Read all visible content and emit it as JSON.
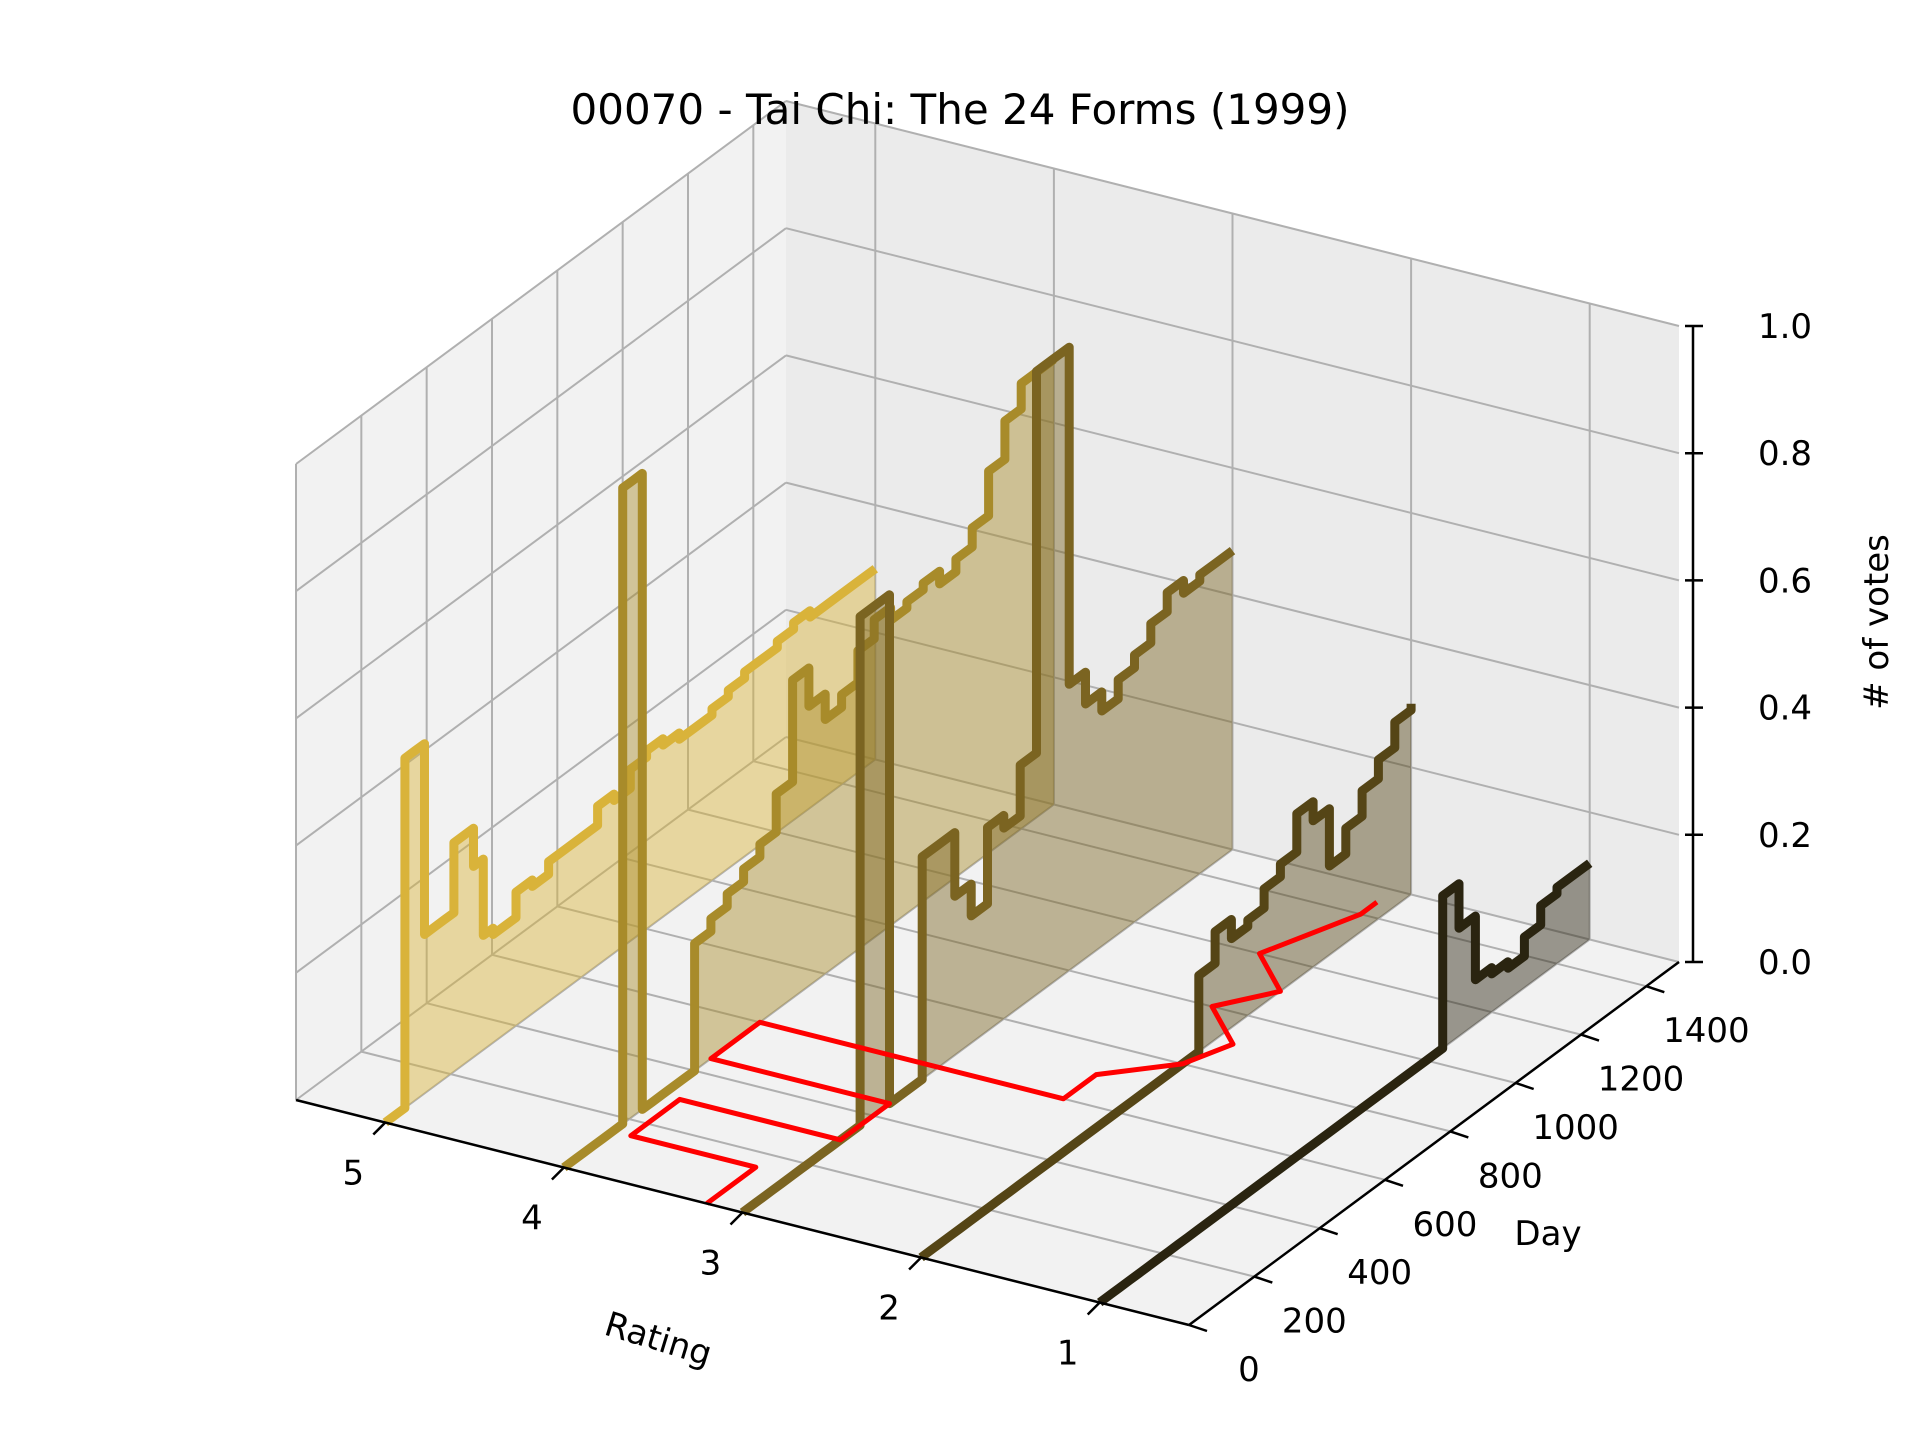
{
  "chart_data": {
    "type": "line",
    "title": "00070 - Tai Chi: The 24 Forms (1999)",
    "xlabel": "Rating",
    "ylabel": "Day",
    "zlabel": "# of votes",
    "x_ticks": [
      "5",
      "4",
      "3",
      "2",
      "1"
    ],
    "y_ticks": [
      "0",
      "200",
      "400",
      "600",
      "800",
      "1000",
      "1200",
      "1400"
    ],
    "z_ticks": [
      "0.0",
      "0.2",
      "0.4",
      "0.6",
      "0.8",
      "1.0"
    ],
    "xlim": [
      0.5,
      5.5
    ],
    "ylim": [
      0,
      1500
    ],
    "zlim": [
      0,
      1
    ],
    "grid": true,
    "day": [
      0,
      40,
      60,
      90,
      120,
      150,
      180,
      210,
      240,
      270,
      300,
      330,
      360,
      400,
      450,
      500,
      550,
      600,
      650,
      700,
      750,
      800,
      850,
      900,
      950,
      1000,
      1050,
      1100,
      1150,
      1200,
      1250,
      1300,
      1350,
      1400,
      1450,
      1500
    ],
    "series": [
      {
        "rating": 5,
        "color": "#d9b33a",
        "values": [
          0,
          0,
          0.55,
          0.55,
          0.25,
          0.25,
          0.25,
          0.36,
          0.36,
          0.3,
          0.18,
          0.17,
          0.17,
          0.21,
          0.2,
          0.22,
          0.22,
          0.22,
          0.25,
          0.24,
          0.27,
          0.28,
          0.27,
          0.26,
          0.26,
          0.27,
          0.28,
          0.29,
          0.29,
          0.3,
          0.31,
          0.3,
          0.3,
          0.3,
          0.3,
          0.3
        ]
      },
      {
        "rating": 4,
        "color": "#a88b2a",
        "values": [
          0,
          0,
          0,
          0,
          0,
          0,
          1.0,
          1.0,
          0,
          0,
          0,
          0,
          0,
          0.2,
          0.22,
          0.24,
          0.26,
          0.28,
          0.34,
          0.5,
          0.44,
          0.4,
          0.42,
          0.47,
          0.5,
          0.48,
          0.49,
          0.5,
          0.48,
          0.5,
          0.53,
          0.6,
          0.66,
          0.7,
          0.7,
          0.7
        ]
      },
      {
        "rating": 3,
        "color": "#7b6421",
        "values": [
          0,
          0,
          0,
          0,
          0,
          0,
          0,
          0,
          0,
          0,
          0,
          0,
          0.8,
          0.8,
          0,
          0,
          0.35,
          0.35,
          0.25,
          0.2,
          0.32,
          0.3,
          0.38,
          0.98,
          0.98,
          0.45,
          0.4,
          0.37,
          0.4,
          0.42,
          0.45,
          0.48,
          0.46,
          0.47,
          0.47,
          0.47
        ]
      },
      {
        "rating": 2,
        "color": "#554516",
        "values": [
          0,
          0,
          0,
          0,
          0,
          0,
          0,
          0,
          0,
          0,
          0,
          0,
          0,
          0,
          0,
          0,
          0,
          0,
          0,
          0,
          0,
          0,
          0.12,
          0.17,
          0.14,
          0.15,
          0.18,
          0.2,
          0.26,
          0.23,
          0.14,
          0.18,
          0.22,
          0.25,
          0.29,
          0.3
        ]
      },
      {
        "rating": 1,
        "color": "#2a2410",
        "values": [
          0,
          0,
          0,
          0,
          0,
          0,
          0,
          0,
          0,
          0,
          0,
          0,
          0,
          0,
          0,
          0,
          0,
          0,
          0,
          0,
          0,
          0,
          0,
          0,
          0,
          0,
          0.24,
          0.17,
          0.07,
          0.06,
          0.05,
          0.08,
          0.11,
          0.12,
          0.12,
          0.12
        ]
      }
    ],
    "mean_rating": {
      "color": "#ff0000",
      "day": [
        0,
        150,
        150,
        300,
        300,
        450,
        450,
        600,
        600,
        700,
        800,
        900,
        1000,
        1100,
        1200,
        1300,
        1400,
        1450
      ],
      "rating": [
        3.2,
        3.2,
        3.9,
        3.9,
        3.0,
        3.0,
        4.0,
        4.0,
        2.3,
        2.3,
        2.0,
        1.9,
        2.2,
        2.0,
        2.3,
        2.2,
        2.1,
        2.1
      ]
    }
  }
}
